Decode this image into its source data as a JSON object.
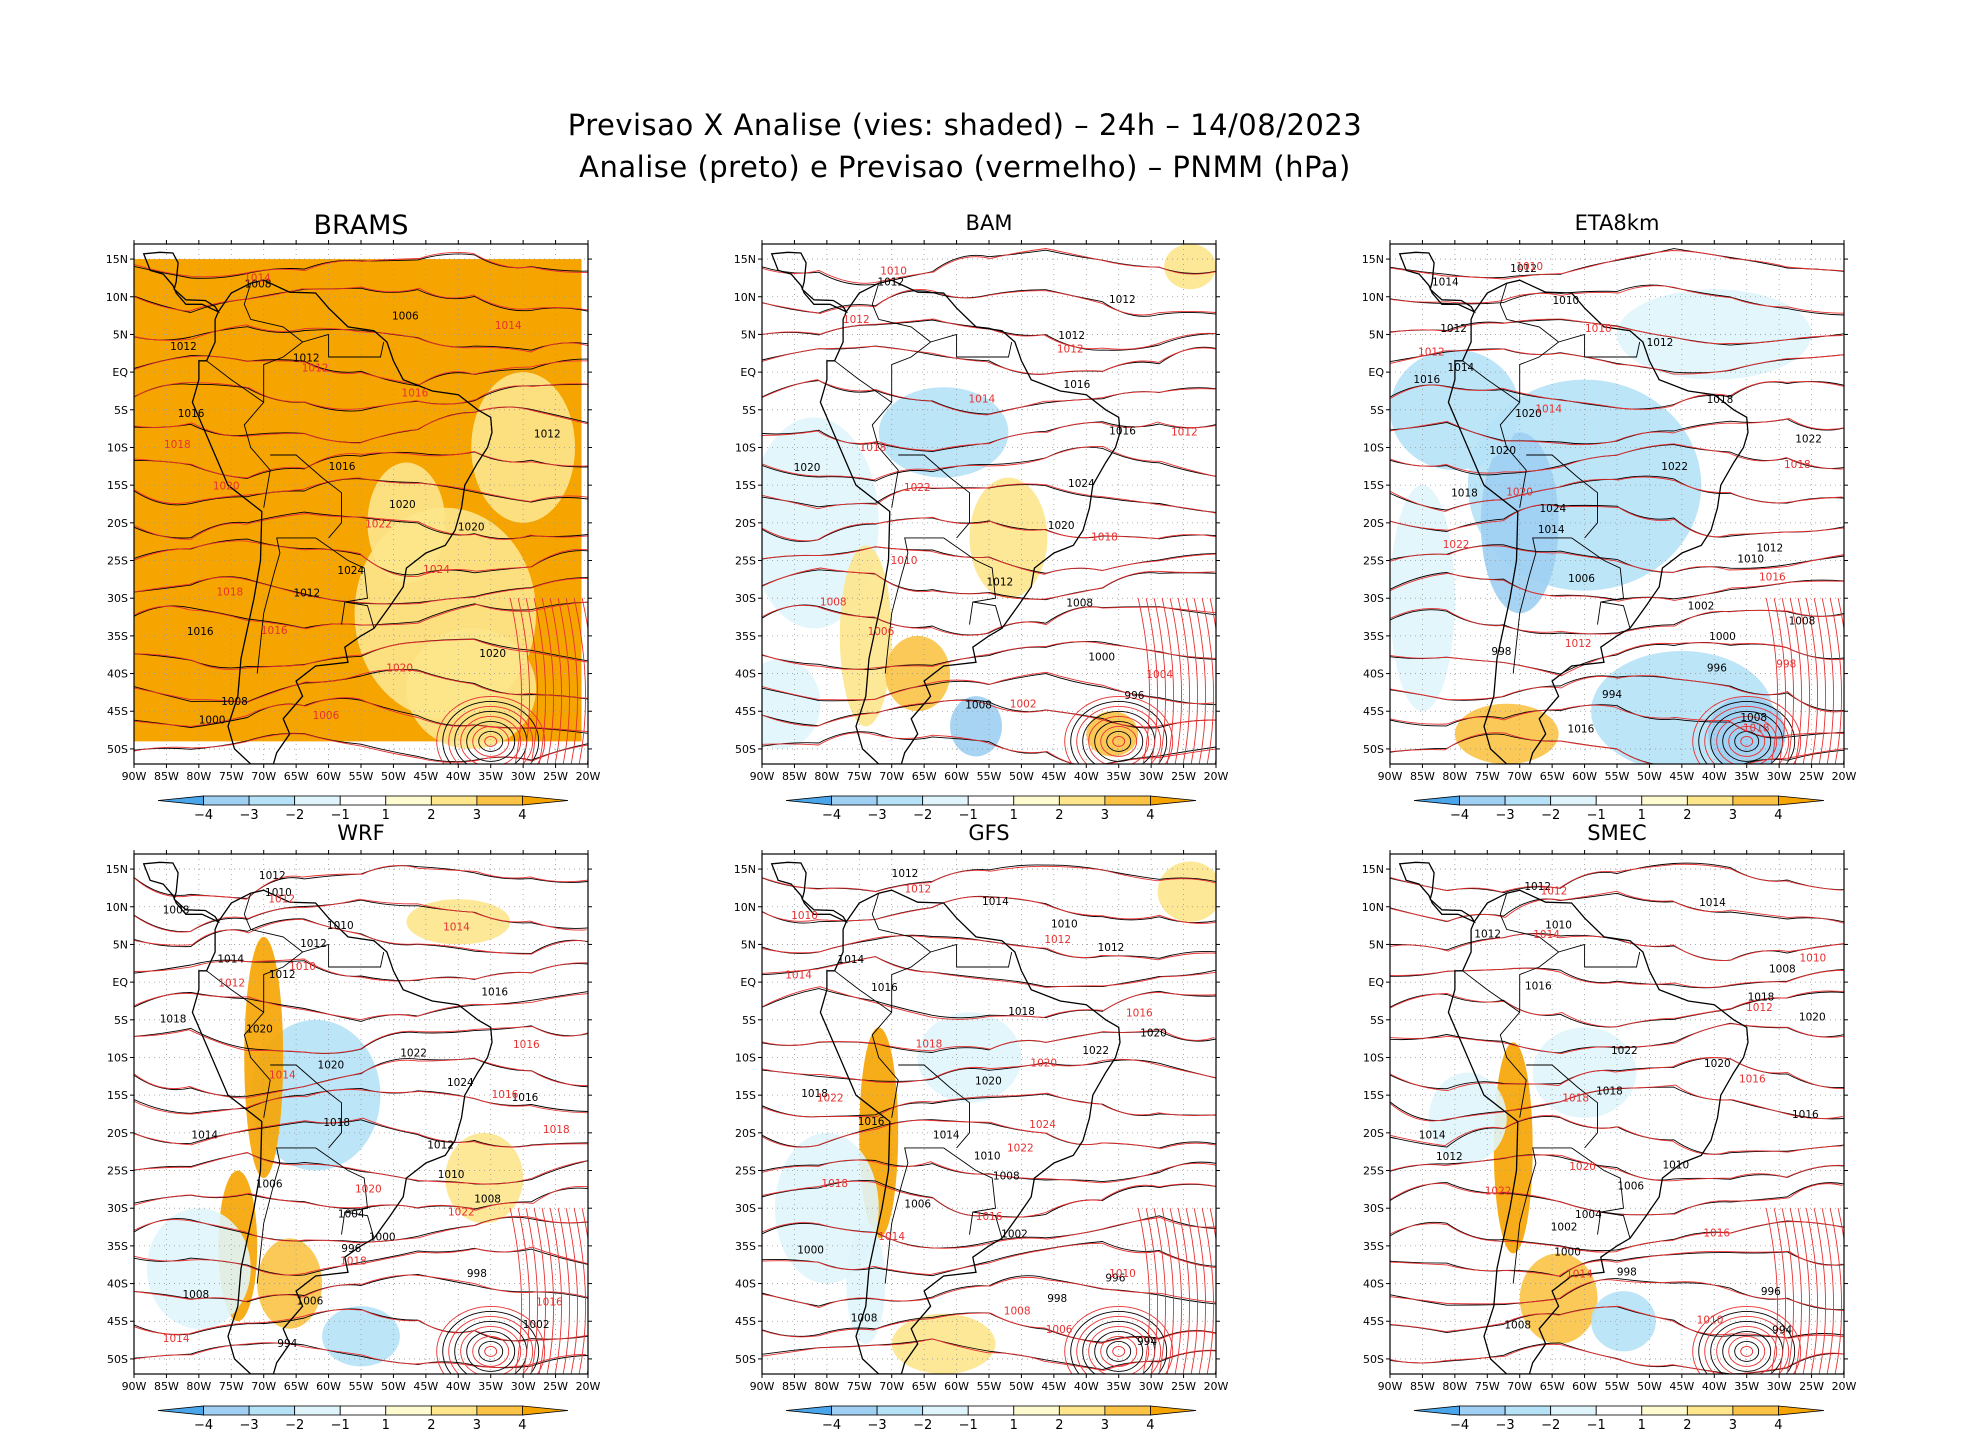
{
  "title": {
    "line1": "Previsao X Analise (vies: shaded) – 24h – 14/08/2023",
    "line2": "Analise (preto) e Previsao (vermelho) – PNMM (hPa)"
  },
  "colors": {
    "neg4": "#4aa6ea",
    "neg3": "#9fcff2",
    "neg2": "#b6e2f7",
    "neg1": "#dff5fb",
    "pos1": "#fffbd1",
    "pos2": "#fde68c",
    "pos3": "#fbc346",
    "pos4": "#f6a400",
    "analysis_contour": "#000000",
    "forecast_contour": "#e83030",
    "land_border": "#000000"
  },
  "axes": {
    "lon_labels": [
      "90W",
      "85W",
      "80W",
      "75W",
      "70W",
      "65W",
      "60W",
      "55W",
      "50W",
      "45W",
      "40W",
      "35W",
      "30W",
      "25W",
      "20W"
    ],
    "lat_labels": [
      "15N",
      "10N",
      "5N",
      "EQ",
      "5S",
      "10S",
      "15S",
      "20S",
      "25S",
      "30S",
      "35S",
      "40S",
      "45S",
      "50S"
    ]
  },
  "colorbar": {
    "labels": [
      "-4",
      "-3",
      "-2",
      "-1",
      "1",
      "2",
      "3",
      "4"
    ]
  },
  "panels": [
    {
      "name": "BRAMS",
      "chart_data": {
        "type": "heatmap",
        "title": "BRAMS",
        "variable": "PNMM bias (hPa)",
        "xlim": [
          "90W",
          "20W"
        ],
        "ylim": [
          "52S",
          "17N"
        ],
        "dominant_bias_class": "3 to 4 (positive)",
        "analysis_contour_labels": [
          "1008",
          "1006",
          "1012",
          "1012",
          "1016",
          "1012",
          "1016",
          "1020",
          "1020",
          "1024",
          "1012",
          "1016",
          "1020",
          "1008",
          "1000"
        ],
        "forecast_contour_labels": [
          "1014",
          "1014",
          "1012",
          "1016",
          "1018",
          "1020",
          "1022",
          "1024",
          "1018",
          "1016",
          "1020",
          "1006"
        ]
      }
    },
    {
      "name": "BAM",
      "chart_data": {
        "type": "heatmap",
        "title": "BAM",
        "variable": "PNMM bias (hPa)",
        "xlim": [
          "90W",
          "20W"
        ],
        "ylim": [
          "52S",
          "17N"
        ],
        "dominant_bias_class": "-1 to 2 (mixed, mostly near zero)",
        "analysis_contour_labels": [
          "1012",
          "1012",
          "1012",
          "1016",
          "1016",
          "1020",
          "1024",
          "1020",
          "1012",
          "1008",
          "1000",
          "996",
          "1008"
        ],
        "forecast_contour_labels": [
          "1010",
          "1012",
          "1012",
          "1014",
          "1012",
          "1018",
          "1022",
          "1018",
          "1010",
          "1008",
          "1006",
          "1004",
          "1002"
        ]
      }
    },
    {
      "name": "ETA8km",
      "chart_data": {
        "type": "heatmap",
        "title": "ETA8km",
        "variable": "PNMM bias (hPa)",
        "xlim": [
          "90W",
          "20W"
        ],
        "ylim": [
          "52S",
          "17N"
        ],
        "dominant_bias_class": "-3 to -1 (negative)",
        "analysis_contour_labels": [
          "1012",
          "1014",
          "1010",
          "1012",
          "1012",
          "1014",
          "1016",
          "1018",
          "1020",
          "1022",
          "1020",
          "1022",
          "1018",
          "1024",
          "1014",
          "1012",
          "1010",
          "1006",
          "1002",
          "1008",
          "1000",
          "998",
          "996",
          "994",
          "1008",
          "1016"
        ],
        "forecast_contour_labels": [
          "1010",
          "1010",
          "1012",
          "1014",
          "1018",
          "1020",
          "1022",
          "1016",
          "1012",
          "998",
          "1018"
        ]
      }
    },
    {
      "name": "WRF",
      "chart_data": {
        "type": "heatmap",
        "title": "WRF",
        "variable": "PNMM bias (hPa)",
        "xlim": [
          "90W",
          "20W"
        ],
        "ylim": [
          "52S",
          "17N"
        ],
        "dominant_bias_class": "-2 to 2 (mixed, Andes positive)",
        "analysis_contour_labels": [
          "1012",
          "1010",
          "1008",
          "1010",
          "1012",
          "1014",
          "1012",
          "1016",
          "1018",
          "1020",
          "1022",
          "1020",
          "1024",
          "1016",
          "1018",
          "1014",
          "1012",
          "1010",
          "1006",
          "1008",
          "1004",
          "1000",
          "996",
          "998",
          "1008",
          "1006",
          "1002",
          "994"
        ],
        "forecast_contour_labels": [
          "1012",
          "1014",
          "1010",
          "1012",
          "1016",
          "1014",
          "1016",
          "1018",
          "1020",
          "1022",
          "1018",
          "1016",
          "1014"
        ]
      }
    },
    {
      "name": "GFS",
      "chart_data": {
        "type": "heatmap",
        "title": "GFS",
        "variable": "PNMM bias (hPa)",
        "xlim": [
          "90W",
          "20W"
        ],
        "ylim": [
          "52S",
          "17N"
        ],
        "dominant_bias_class": "-1 to 1 (near zero)",
        "analysis_contour_labels": [
          "1012",
          "1014",
          "1010",
          "1012",
          "1014",
          "1016",
          "1018",
          "1020",
          "1022",
          "1020",
          "1018",
          "1016",
          "1014",
          "1010",
          "1008",
          "1006",
          "1002",
          "1000",
          "996",
          "998",
          "1008",
          "994"
        ],
        "forecast_contour_labels": [
          "1012",
          "1010",
          "1012",
          "1014",
          "1016",
          "1018",
          "1020",
          "1022",
          "1024",
          "1022",
          "1018",
          "1016",
          "1014",
          "1010",
          "1008",
          "1006"
        ]
      }
    },
    {
      "name": "SMEC",
      "chart_data": {
        "type": "heatmap",
        "title": "SMEC",
        "variable": "PNMM bias (hPa)",
        "xlim": [
          "90W",
          "20W"
        ],
        "ylim": [
          "52S",
          "17N"
        ],
        "dominant_bias_class": "-1 to 1 (near zero, Andes positive)",
        "analysis_contour_labels": [
          "1012",
          "1014",
          "1010",
          "1012",
          "1008",
          "1016",
          "1018",
          "1020",
          "1022",
          "1020",
          "1018",
          "1016",
          "1014",
          "1012",
          "1010",
          "1006",
          "1004",
          "1002",
          "1000",
          "998",
          "996",
          "1008",
          "994"
        ],
        "forecast_contour_labels": [
          "1012",
          "1014",
          "1010",
          "1012",
          "1016",
          "1018",
          "1020",
          "1022",
          "1016",
          "1014",
          "1010"
        ]
      }
    }
  ]
}
